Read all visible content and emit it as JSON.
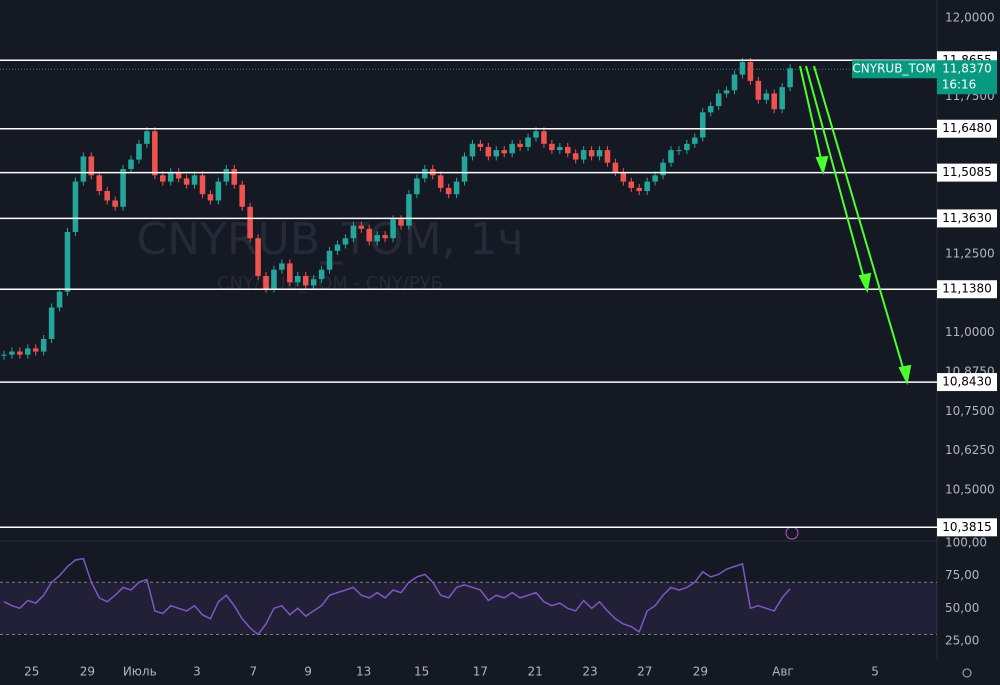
{
  "chart_data": {
    "type": "candlestick",
    "watermark": "CNYRUB_TOM, 1ч",
    "watermark_subtitle": "CNY/RUB_TOM - CNY/РУБ",
    "up_color": "#26a69a",
    "down_color": "#ef5350",
    "close": [
      10.93,
      10.94,
      10.93,
      10.95,
      10.94,
      10.98,
      11.08,
      11.13,
      11.32,
      11.48,
      11.56,
      11.5,
      11.45,
      11.42,
      11.4,
      11.52,
      11.55,
      11.6,
      11.64,
      11.5,
      11.48,
      11.51,
      11.49,
      11.47,
      11.5,
      11.44,
      11.42,
      11.48,
      11.52,
      11.47,
      11.4,
      11.3,
      11.18,
      11.14,
      11.2,
      11.22,
      11.16,
      11.18,
      11.15,
      11.17,
      11.2,
      11.26,
      11.28,
      11.3,
      11.34,
      11.33,
      11.29,
      11.31,
      11.3,
      11.36,
      11.34,
      11.44,
      11.49,
      11.52,
      11.5,
      11.46,
      11.44,
      11.48,
      11.56,
      11.6,
      11.59,
      11.56,
      11.58,
      11.57,
      11.6,
      11.59,
      11.62,
      11.64,
      11.6,
      11.58,
      11.59,
      11.57,
      11.55,
      11.58,
      11.56,
      11.58,
      11.54,
      11.51,
      11.48,
      11.46,
      11.45,
      11.48,
      11.5,
      11.54,
      11.58,
      11.58,
      11.6,
      11.62,
      11.7,
      11.72,
      11.76,
      11.77,
      11.82,
      11.86,
      11.8,
      11.74,
      11.76,
      11.71,
      11.78,
      11.84
    ],
    "xlim": [
      0,
      118
    ],
    "xticks": [
      {
        "value": 4,
        "label": "25"
      },
      {
        "value": 11,
        "label": "29"
      },
      {
        "value": 17.6,
        "label": "Июль"
      },
      {
        "value": 24.8,
        "label": "3"
      },
      {
        "value": 31.9,
        "label": "7"
      },
      {
        "value": 38.8,
        "label": "9"
      },
      {
        "value": 45.8,
        "label": "13"
      },
      {
        "value": 53.1,
        "label": "15"
      },
      {
        "value": 60.5,
        "label": "17"
      },
      {
        "value": 67.4,
        "label": "21"
      },
      {
        "value": 74.3,
        "label": "23"
      },
      {
        "value": 81.2,
        "label": "27"
      },
      {
        "value": 88.2,
        "label": "29"
      },
      {
        "value": 98.6,
        "label": "Авг"
      },
      {
        "value": 110.2,
        "label": "5"
      }
    ],
    "ylim": [
      10.338,
      12.057
    ],
    "yticks": [
      {
        "value": 12,
        "label": "12,0000"
      },
      {
        "value": 11.75,
        "label": "11,7500"
      },
      {
        "value": 11.25,
        "label": "11,2500"
      },
      {
        "value": 11,
        "label": "11,0000"
      },
      {
        "value": 10.875,
        "label": "10,8750"
      },
      {
        "value": 10.75,
        "label": "10,7500"
      },
      {
        "value": 10.625,
        "label": "10,6250"
      },
      {
        "value": 10.5,
        "label": "10,5000"
      }
    ],
    "levels": [
      {
        "value": 11.8655,
        "label": "11,8655"
      },
      {
        "value": 11.648,
        "label": "11,6480"
      },
      {
        "value": 11.5085,
        "label": "11,5085"
      },
      {
        "value": 11.363,
        "label": "11,3630"
      },
      {
        "value": 11.138,
        "label": "11,1380"
      },
      {
        "value": 10.843,
        "label": "10,8430"
      },
      {
        "value": 10.3815,
        "label": "10,3815"
      }
    ],
    "last_price": {
      "symbol": "CNYRUB_TOM",
      "value": 11.837,
      "label": "11,8370",
      "time": "16:16",
      "color": "#089981"
    },
    "indicator": {
      "type": "line",
      "color": "#7e57c2",
      "values": [
        55,
        52,
        50,
        56,
        54,
        60,
        70,
        75,
        82,
        87,
        88,
        70,
        58,
        55,
        60,
        66,
        64,
        70,
        72,
        48,
        46,
        52,
        50,
        48,
        52,
        45,
        42,
        55,
        60,
        52,
        42,
        35,
        30,
        38,
        50,
        52,
        45,
        50,
        44,
        48,
        52,
        60,
        62,
        64,
        66,
        60,
        58,
        62,
        58,
        64,
        62,
        70,
        74,
        76,
        70,
        60,
        58,
        66,
        68,
        66,
        64,
        56,
        60,
        58,
        62,
        58,
        60,
        62,
        55,
        52,
        54,
        50,
        48,
        56,
        50,
        55,
        48,
        42,
        38,
        36,
        32,
        48,
        52,
        60,
        66,
        64,
        66,
        70,
        78,
        74,
        76,
        80,
        82,
        84,
        50,
        52,
        50,
        48,
        58,
        65
      ],
      "band": [
        30,
        70
      ],
      "ylim": [
        13.5,
        100
      ],
      "yticks": [
        {
          "value": 100,
          "label": "100,00"
        },
        {
          "value": 75,
          "label": "75,00"
        },
        {
          "value": 50,
          "label": "50,00"
        },
        {
          "value": 25,
          "label": "25,00"
        }
      ]
    }
  }
}
